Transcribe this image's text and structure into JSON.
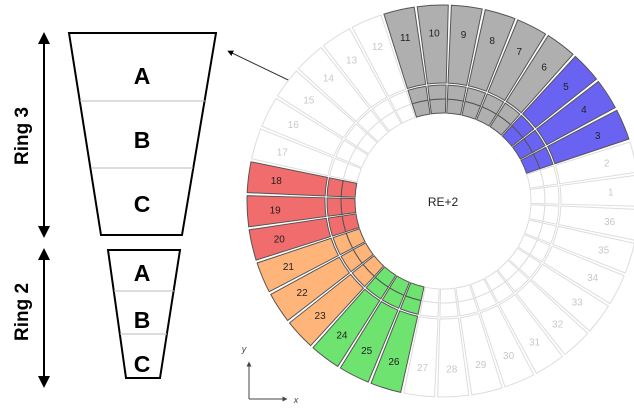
{
  "left_diagram": {
    "ring3": {
      "label": "Ring 3",
      "segments": [
        "A",
        "B",
        "C"
      ]
    },
    "ring2": {
      "label": "Ring 2",
      "segments": [
        "A",
        "B",
        "C"
      ]
    }
  },
  "wheel": {
    "center_label": "RE+2",
    "axis_labels": {
      "y": "y",
      "x": "x"
    },
    "chamber_numbers": [
      "1",
      "2",
      "3",
      "4",
      "5",
      "6",
      "7",
      "8",
      "9",
      "10",
      "11",
      "12",
      "13",
      "14",
      "15",
      "16",
      "17",
      "18",
      "19",
      "20",
      "21",
      "22",
      "23",
      "24",
      "25",
      "26",
      "27",
      "28",
      "29",
      "30",
      "31",
      "32",
      "33",
      "34",
      "35",
      "36"
    ],
    "color_groups": [
      {
        "chambers": [
          "3",
          "4",
          "5"
        ],
        "color": "#5a52f0"
      },
      {
        "chambers": [
          "6",
          "7",
          "8",
          "9",
          "10",
          "11"
        ],
        "color": "#a6a6a6"
      },
      {
        "chambers": [
          "18",
          "19",
          "20"
        ],
        "color": "#ef5d5d"
      },
      {
        "chambers": [
          "21",
          "22",
          "23"
        ],
        "color": "#ffad6a"
      },
      {
        "chambers": [
          "24",
          "25",
          "26"
        ],
        "color": "#5fe05f"
      }
    ],
    "colors": {
      "outline_default": "#dddddd",
      "text_default": "#c8c8c8",
      "text_colored": "#222222"
    }
  }
}
